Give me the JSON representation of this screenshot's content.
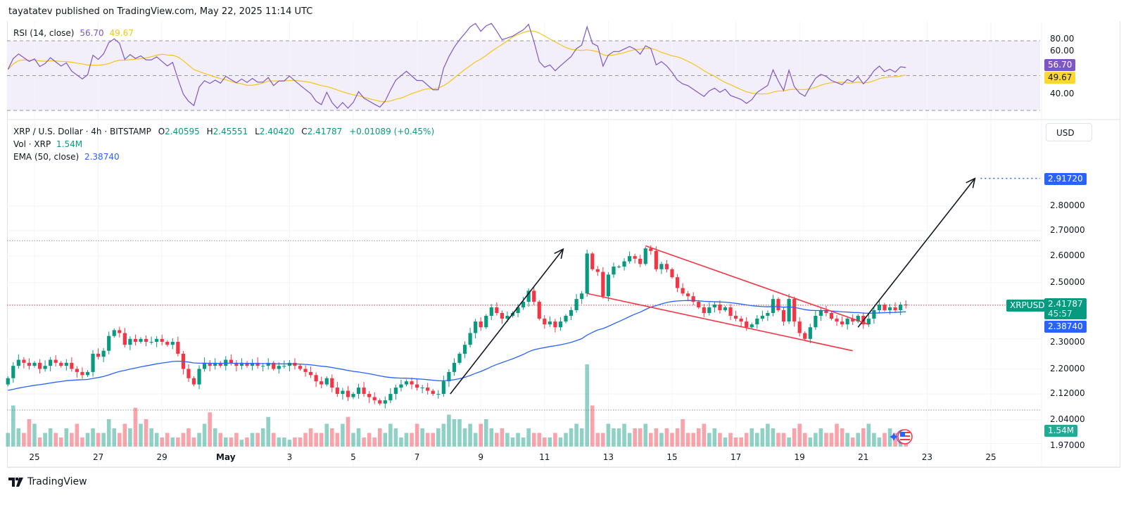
{
  "header": {
    "published": "tayatatev published on TradingView.com, May 22, 2025 11:14 UTC"
  },
  "rsi": {
    "label": "RSI (14, close)",
    "value": "56.70",
    "ma_value": "49.67",
    "axis_labels": [
      "80.00",
      "60.00",
      "40.00"
    ],
    "line_color": "#7e57c2",
    "ma_color": "#f5c518",
    "bands": [
      70,
      50,
      30
    ]
  },
  "legend": {
    "symbol": "XRP / U.S. Dollar · 4h · BITSTAMP",
    "o_label": "O",
    "o": "2.40595",
    "h_label": "H",
    "h": "2.45551",
    "l_label": "L",
    "l": "2.40420",
    "c_label": "C",
    "c": "2.41787",
    "change": "+0.01089 (+0.45%)",
    "vol_label": "Vol · XRP",
    "vol": "1.54M",
    "ema_label": "EMA (50, close)",
    "ema": "2.38740"
  },
  "currency": "USD",
  "badges": {
    "target": "2.91720",
    "symbol": "XRPUSD",
    "last_price": "2.41787",
    "countdown": "45:57",
    "ema": "2.38740",
    "volume": "1.54M"
  },
  "footer": {
    "logo": "TradingView"
  },
  "colors": {
    "up": "#089981",
    "down": "#f23645",
    "ema": "#2962ff",
    "rsi_bg": "#f3effa",
    "arrow": "#131722",
    "channel": "#f23645"
  },
  "chart_data": {
    "type": "candlestick",
    "scale": "log",
    "interval": "4h",
    "start": "2025-04-24T04:00Z",
    "y_ticks": [
      "2.80000",
      "2.70000",
      "2.60000",
      "2.50000",
      "2.30000",
      "2.20000",
      "2.12000",
      "2.04000",
      "1.97000"
    ],
    "x_ticks": [
      {
        "label": "25",
        "date": "2025-04-25"
      },
      {
        "label": "27",
        "date": "2025-04-27"
      },
      {
        "label": "29",
        "date": "2025-04-29"
      },
      {
        "label": "May",
        "date": "2025-05-01"
      },
      {
        "label": "3",
        "date": "2025-05-03"
      },
      {
        "label": "5",
        "date": "2025-05-05"
      },
      {
        "label": "7",
        "date": "2025-05-07"
      },
      {
        "label": "9",
        "date": "2025-05-09"
      },
      {
        "label": "11",
        "date": "2025-05-11"
      },
      {
        "label": "13",
        "date": "2025-05-13"
      },
      {
        "label": "15",
        "date": "2025-05-15"
      },
      {
        "label": "17",
        "date": "2025-05-17"
      },
      {
        "label": "19",
        "date": "2025-05-19"
      },
      {
        "label": "21",
        "date": "2025-05-21"
      },
      {
        "label": "23",
        "date": "2025-05-23"
      },
      {
        "label": "25",
        "date": "2025-05-25"
      }
    ],
    "close": [
      2.17,
      2.21,
      2.23,
      2.22,
      2.21,
      2.22,
      2.2,
      2.21,
      2.23,
      2.22,
      2.21,
      2.22,
      2.2,
      2.19,
      2.18,
      2.19,
      2.25,
      2.24,
      2.26,
      2.31,
      2.33,
      2.32,
      2.28,
      2.3,
      2.29,
      2.3,
      2.29,
      2.29,
      2.3,
      2.29,
      2.28,
      2.29,
      2.25,
      2.2,
      2.17,
      2.15,
      2.2,
      2.22,
      2.21,
      2.22,
      2.21,
      2.23,
      2.22,
      2.21,
      2.22,
      2.21,
      2.22,
      2.21,
      2.21,
      2.22,
      2.2,
      2.21,
      2.21,
      2.22,
      2.21,
      2.2,
      2.19,
      2.18,
      2.16,
      2.15,
      2.17,
      2.14,
      2.12,
      2.13,
      2.11,
      2.12,
      2.14,
      2.12,
      2.11,
      2.1,
      2.09,
      2.1,
      2.12,
      2.14,
      2.15,
      2.16,
      2.15,
      2.14,
      2.14,
      2.13,
      2.12,
      2.12,
      2.16,
      2.19,
      2.22,
      2.25,
      2.28,
      2.32,
      2.36,
      2.34,
      2.38,
      2.41,
      2.39,
      2.37,
      2.38,
      2.39,
      2.41,
      2.43,
      2.47,
      2.43,
      2.37,
      2.35,
      2.36,
      2.34,
      2.36,
      2.38,
      2.4,
      2.44,
      2.46,
      2.61,
      2.55,
      2.54,
      2.45,
      2.53,
      2.56,
      2.56,
      2.58,
      2.6,
      2.59,
      2.57,
      2.63,
      2.62,
      2.55,
      2.57,
      2.55,
      2.52,
      2.48,
      2.46,
      2.45,
      2.43,
      2.41,
      2.39,
      2.41,
      2.42,
      2.4,
      2.41,
      2.38,
      2.37,
      2.36,
      2.34,
      2.35,
      2.37,
      2.38,
      2.39,
      2.44,
      2.4,
      2.36,
      2.44,
      2.36,
      2.32,
      2.3,
      2.34,
      2.38,
      2.4,
      2.39,
      2.37,
      2.36,
      2.35,
      2.37,
      2.36,
      2.38,
      2.35,
      2.37,
      2.4,
      2.42,
      2.4,
      2.41,
      2.4,
      2.42,
      2.41787
    ],
    "volume_m": [
      3,
      9,
      4,
      3,
      6,
      5,
      2,
      3,
      4,
      3,
      2,
      4,
      3,
      5,
      2,
      3,
      4,
      3,
      3,
      6,
      4,
      3,
      5,
      4,
      8.5,
      5,
      6,
      4,
      3,
      2,
      3,
      2,
      2,
      3,
      4,
      2,
      3,
      5,
      7.5,
      4,
      3,
      2,
      2,
      3,
      1.5,
      2,
      3,
      3,
      4,
      6.5,
      3,
      2,
      2,
      1.5,
      2,
      2,
      3,
      4,
      3,
      3,
      5,
      4,
      3,
      5,
      6.5,
      3,
      4,
      2,
      3,
      2,
      4,
      3,
      5,
      4,
      2,
      3,
      3,
      5,
      4,
      3,
      3,
      4,
      5,
      7,
      6,
      6,
      4,
      5,
      3,
      5,
      6,
      4,
      3,
      4,
      3,
      2,
      3,
      2,
      4,
      3,
      3,
      2,
      2,
      3,
      2,
      3,
      4,
      5,
      4,
      18,
      9,
      3,
      3,
      5,
      4,
      4,
      5,
      3,
      4,
      4,
      5,
      3,
      4,
      3,
      4,
      3,
      4,
      6,
      3,
      3,
      4,
      5,
      3,
      4,
      3,
      2,
      3,
      2,
      2,
      3,
      4,
      3,
      4,
      5,
      4,
      3,
      3,
      2,
      4,
      5,
      3,
      2,
      3,
      4,
      3,
      3,
      5,
      4,
      3,
      2,
      3,
      4,
      5,
      3,
      2,
      3,
      4,
      3,
      2,
      1.54
    ],
    "ema_period": 50,
    "rsi_period": 14,
    "rsi_ma_period": 14,
    "horizontal_levels": [
      {
        "price": 2.66,
        "style": "dotted",
        "color": "#9598a1"
      },
      {
        "price": 2.07,
        "style": "dotted",
        "color": "#9598a1"
      },
      {
        "price": 2.41787,
        "style": "dotted",
        "color": "#f23645"
      }
    ],
    "target_line": {
      "price": 2.9172,
      "from": "2025-05-24T12:00Z",
      "color": "#2962ff"
    },
    "drawings": [
      {
        "kind": "arrow",
        "from": [
          "2025-05-08T01:00Z",
          2.12
        ],
        "to": [
          "2025-05-11T14:00Z",
          2.627
        ]
      },
      {
        "kind": "arrow",
        "from": [
          "2025-05-20T20:00Z",
          2.34
        ],
        "to": [
          "2025-05-24T12:00Z",
          2.9172
        ]
      },
      {
        "kind": "trendline",
        "from": [
          "2025-05-14T04:00Z",
          2.64
        ],
        "to": [
          "2025-05-21T04:00Z",
          2.35
        ]
      },
      {
        "kind": "trendline",
        "from": [
          "2025-05-12T08:00Z",
          2.46
        ],
        "to": [
          "2025-05-20T16:00Z",
          2.26
        ]
      }
    ]
  }
}
